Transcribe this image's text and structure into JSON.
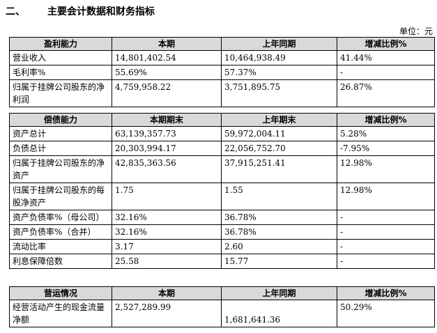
{
  "heading": {
    "number": "二、",
    "title": "主要会计数据和财务指标"
  },
  "unit": "单位：元",
  "profit": {
    "headers": [
      "盈利能力",
      "本期",
      "上年同期",
      "增减比例%"
    ],
    "rows": [
      [
        "营业收入",
        "14,801,402.54",
        "10,464,938.49",
        "41.44%"
      ],
      [
        "毛利率%",
        "55.69%",
        "57.37%",
        "-"
      ],
      [
        "归属于挂牌公司股东的净利润",
        "4,759,958.22",
        "3,751,895.75",
        "26.87%"
      ]
    ]
  },
  "solvency": {
    "headers": [
      "偿债能力",
      "本期期末",
      "上年期末",
      "增减比例%"
    ],
    "rows": [
      [
        "资产总计",
        "63,139,357.73",
        "59,972,004.11",
        "5.28%"
      ],
      [
        "负债总计",
        "20,303,994.17",
        "22,056,752.70",
        "-7.95%"
      ],
      [
        "归属于挂牌公司股东的净资产",
        "42,835,363.56",
        "37,915,251.41",
        "12.98%"
      ],
      [
        "归属于挂牌公司股东的每股净资产",
        "1.75",
        "1.55",
        "12.98%"
      ],
      [
        "资产负债率%（母公司）",
        "32.16%",
        "36.78%",
        "-"
      ],
      [
        "资产负债率%（合并）",
        "32.16%",
        "36.78%",
        "-"
      ],
      [
        "流动比率",
        "3.17",
        "2.60",
        "-"
      ],
      [
        "利息保障倍数",
        "25.58",
        "15.77",
        "-"
      ]
    ]
  },
  "operation": {
    "headers": [
      "营运情况",
      "本期",
      "上年同期",
      "增减比例%"
    ],
    "rows": [
      [
        "经营活动产生的现金流量净额",
        "2,527,289.99",
        "1,681,641.36",
        "50.29%"
      ]
    ]
  }
}
